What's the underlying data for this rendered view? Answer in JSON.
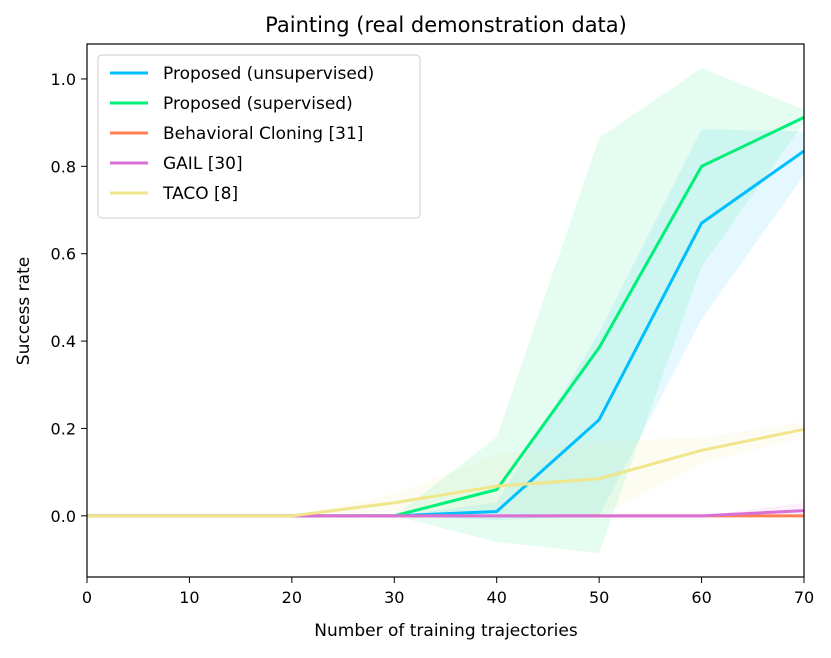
{
  "chart_data": {
    "type": "line",
    "title": "Painting (real demonstration data)",
    "xlabel": "Number of training trajectories",
    "ylabel": "Success rate",
    "xlim": [
      0,
      70
    ],
    "ylim": [
      -0.14,
      1.08
    ],
    "x_ticks": [
      "0",
      "10",
      "20",
      "30",
      "40",
      "50",
      "60",
      "70"
    ],
    "x_tick_values": [
      0,
      10,
      20,
      30,
      40,
      50,
      60,
      70
    ],
    "y_ticks": [
      "0.0",
      "0.2",
      "0.4",
      "0.6",
      "0.8",
      "1.0"
    ],
    "y_tick_values": [
      0,
      0.2,
      0.4,
      0.6,
      0.8,
      1.0
    ],
    "grid": false,
    "legend_position": "top-left",
    "x": [
      0,
      10,
      20,
      30,
      40,
      50,
      60,
      70
    ],
    "series": [
      {
        "name": "Proposed (unsupervised)",
        "color": "#00bfff",
        "values": [
          0,
          0,
          0,
          0,
          0.01,
          0.22,
          0.67,
          0.835
        ],
        "band_lower": [
          0,
          0,
          0,
          0,
          -0.01,
          0.0,
          0.45,
          0.78
        ],
        "band_upper": [
          0,
          0,
          0,
          0,
          0.03,
          0.42,
          0.885,
          0.88
        ]
      },
      {
        "name": "Proposed (supervised)",
        "color": "#00f07a",
        "values": [
          0,
          0,
          0,
          0,
          0.06,
          0.385,
          0.8,
          0.912
        ],
        "band_lower": [
          0,
          0,
          0,
          0,
          -0.06,
          -0.085,
          0.57,
          0.9
        ],
        "band_upper": [
          0,
          0,
          0,
          0,
          0.18,
          0.865,
          1.025,
          0.93
        ]
      },
      {
        "name": "Behavioral Cloning [31]",
        "color": "#ff7f50",
        "values": [
          0,
          0,
          0,
          0,
          0,
          0,
          0,
          0
        ],
        "band_lower": [
          0,
          0,
          0,
          0,
          0,
          0,
          0,
          0
        ],
        "band_upper": [
          0,
          0,
          0,
          0,
          0,
          0,
          0,
          0
        ]
      },
      {
        "name": "GAIL [30]",
        "color": "#da70d6",
        "values": [
          0,
          0,
          0,
          0,
          0,
          0,
          0,
          0.012
        ],
        "band_lower": [
          0,
          0,
          0,
          0,
          0,
          0,
          0,
          -0.005
        ],
        "band_upper": [
          0,
          0,
          0,
          0,
          0,
          0,
          0,
          0.03
        ]
      },
      {
        "name": "TACO [8]",
        "color": "#f0e68c",
        "values": [
          0,
          0,
          0,
          0.03,
          0.068,
          0.085,
          0.15,
          0.198
        ],
        "band_lower": [
          0,
          0,
          0,
          0.01,
          0.01,
          0.0,
          0.12,
          0.18
        ],
        "band_upper": [
          0,
          0,
          0,
          0.05,
          0.14,
          0.17,
          0.18,
          0.215
        ]
      }
    ]
  }
}
